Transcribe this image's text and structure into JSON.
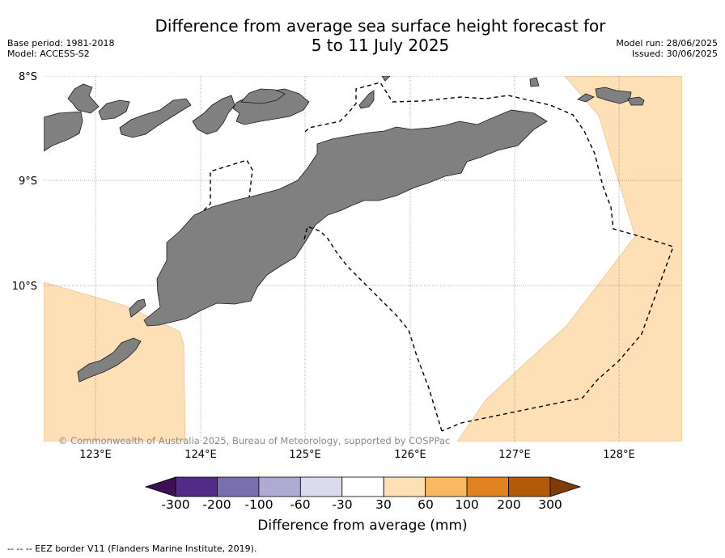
{
  "title_line1": "Difference from average sea surface height forecast for",
  "title_line2": "5 to 11 July 2025",
  "base_period": "Base period: 1981-2018",
  "model": "Model: ACCESS-S2",
  "model_run": "Model run: 28/06/2025",
  "issued": "Issued: 30/06/2025",
  "lat_labels": [
    "8°S",
    "9°S",
    "10°S"
  ],
  "lon_labels": [
    "123°E",
    "124°E",
    "125°E",
    "126°E",
    "127°E",
    "128°E"
  ],
  "copyright": "© Commonwealth of Australia 2025, Bureau of Meteorology, supported by COSPPac",
  "colorbar": {
    "title": "Difference from average (mm)",
    "ticks": [
      "-300",
      "-200",
      "-100",
      "-60",
      "-30",
      "30",
      "60",
      "100",
      "200",
      "300"
    ],
    "colors": [
      "#3c1052",
      "#522a87",
      "#7a6fad",
      "#aeaad2",
      "#d9daeb",
      "#ffffff",
      "#fde0b5",
      "#fbb862",
      "#e08320",
      "#b35a0a",
      "#7f3b08"
    ]
  },
  "footer": "--  --  -- EEZ border V11 (Flanders Marine Institute, 2019).",
  "colors": {
    "land": "#808080",
    "positive_anomaly": "#fde0b5",
    "background": "#ffffff"
  }
}
